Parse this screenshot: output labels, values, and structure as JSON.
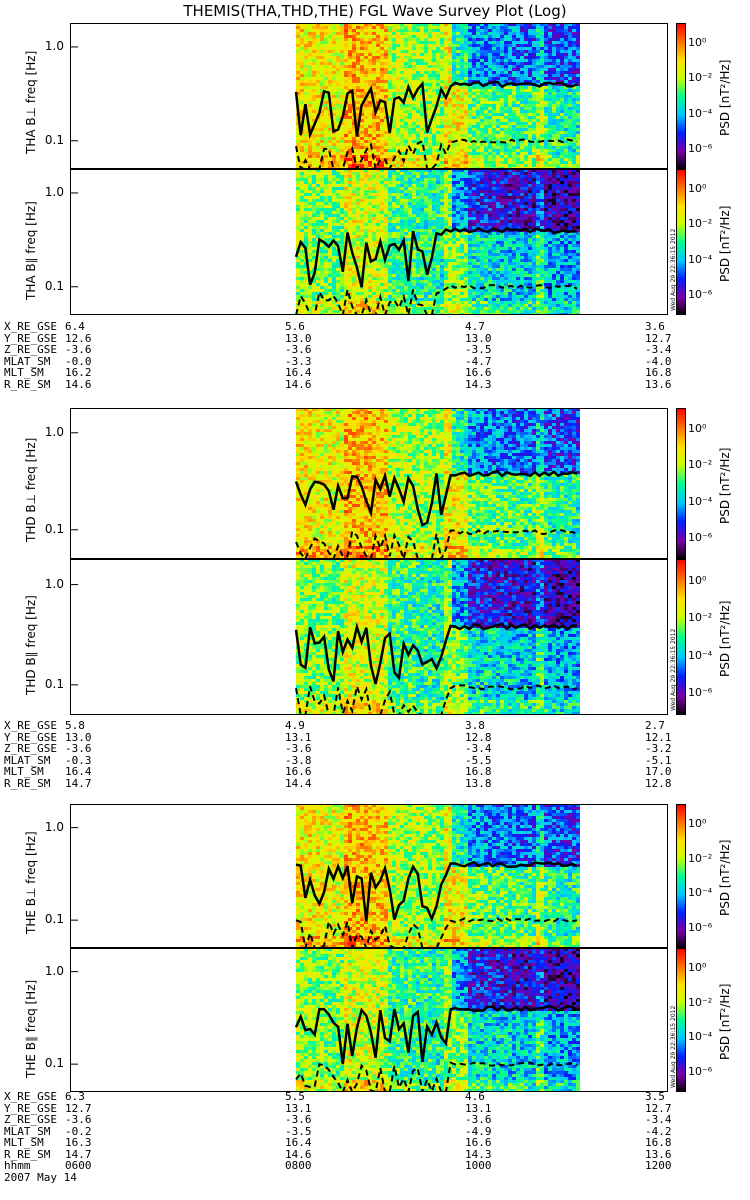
{
  "title": "THEMIS(THA,THD,THE) FGL Wave Survey Plot (Log)",
  "colors": {
    "trace": "#000000",
    "frame": "#000000",
    "background": "#ffffff"
  },
  "chart_data": {
    "type": "heatmap",
    "date": "2007 May 14",
    "x_ticks": [
      "0600",
      "0800",
      "1000",
      "1200"
    ],
    "x_tick_label": "hhmm",
    "y_axis": {
      "scale": "log",
      "range_hz": [
        0.05,
        1.8
      ],
      "ticks": [
        "1.0",
        "0.1"
      ],
      "label": "freq [Hz]"
    },
    "colorbar": {
      "label": "PSD [nT²/Hz]",
      "scale": "log",
      "range": [
        1e-07,
        30
      ],
      "ticks": [
        "10⁰",
        "10⁻²",
        "10⁻⁴",
        "10⁻⁶"
      ],
      "colormap": [
        "#000000",
        "#7a00a8",
        "#0020ff",
        "#00c8ff",
        "#00ff90",
        "#c8ff00",
        "#ffe000",
        "#ff7000",
        "#ff0000"
      ]
    },
    "stamp": "Wed Aug 29 22:36:15 2012",
    "data_coverage_hhmm": [
      "0840",
      "1130"
    ],
    "panels": [
      {
        "probe": "THA",
        "component": "perp",
        "label": "THA B⊥",
        "stamp": "",
        "lines": {
          "solid_hz_approx": 0.4,
          "dashed_hz_approx": 0.1
        }
      },
      {
        "probe": "THA",
        "component": "par",
        "label": "THA B∥",
        "stamp": "Wed Aug 29 22:36:15 2012",
        "lines": {
          "solid_hz_approx": 0.4,
          "dashed_hz_approx": 0.1
        }
      },
      {
        "probe": "THD",
        "component": "perp",
        "label": "THD B⊥",
        "stamp": "",
        "lines": {
          "solid_hz_approx": 0.38,
          "dashed_hz_approx": 0.095
        }
      },
      {
        "probe": "THD",
        "component": "par",
        "label": "THD B∥",
        "stamp": "Wed Aug 29 22:36:15 2012",
        "lines": {
          "solid_hz_approx": 0.38,
          "dashed_hz_approx": 0.095
        }
      },
      {
        "probe": "THE",
        "component": "perp",
        "label": "THE B⊥",
        "stamp": "",
        "lines": {
          "solid_hz_approx": 0.4,
          "dashed_hz_approx": 0.1
        }
      },
      {
        "probe": "THE",
        "component": "par",
        "label": "THE B∥",
        "stamp": "Wed Aug 29 22:36:15 2012",
        "lines": {
          "solid_hz_approx": 0.4,
          "dashed_hz_approx": 0.1
        }
      }
    ],
    "ephemeris": [
      {
        "probe": "THA",
        "rows": [
          {
            "name": "X_RE_GSE",
            "values": [
              "6.4",
              "5.6",
              "4.7",
              "3.6"
            ]
          },
          {
            "name": "Y_RE_GSE",
            "values": [
              "12.6",
              "13.0",
              "13.0",
              "12.7"
            ]
          },
          {
            "name": "Z_RE_GSE",
            "values": [
              "-3.6",
              "-3.6",
              "-3.5",
              "-3.4"
            ]
          },
          {
            "name": "MLAT_SM",
            "values": [
              "-0.0",
              "-3.3",
              "-4.7",
              "-4.0"
            ]
          },
          {
            "name": "MLT_SM",
            "values": [
              "16.2",
              "16.4",
              "16.6",
              "16.8"
            ]
          },
          {
            "name": "R_RE_SM",
            "values": [
              "14.6",
              "14.6",
              "14.3",
              "13.6"
            ]
          }
        ]
      },
      {
        "probe": "THD",
        "rows": [
          {
            "name": "X_RE_GSE",
            "values": [
              "5.8",
              "4.9",
              "3.8",
              "2.7"
            ]
          },
          {
            "name": "Y_RE_GSE",
            "values": [
              "13.0",
              "13.1",
              "12.8",
              "12.1"
            ]
          },
          {
            "name": "Z_RE_GSE",
            "values": [
              "-3.6",
              "-3.6",
              "-3.4",
              "-3.2"
            ]
          },
          {
            "name": "MLAT_SM",
            "values": [
              "-0.3",
              "-3.8",
              "-5.5",
              "-5.1"
            ]
          },
          {
            "name": "MLT_SM",
            "values": [
              "16.4",
              "16.6",
              "16.8",
              "17.0"
            ]
          },
          {
            "name": "R_RE_SM",
            "values": [
              "14.7",
              "14.4",
              "13.8",
              "12.8"
            ]
          }
        ]
      },
      {
        "probe": "THE",
        "rows": [
          {
            "name": "X_RE_GSE",
            "values": [
              "6.3",
              "5.5",
              "4.6",
              "3.5"
            ]
          },
          {
            "name": "Y_RE_GSE",
            "values": [
              "12.7",
              "13.1",
              "13.1",
              "12.7"
            ]
          },
          {
            "name": "Z_RE_GSE",
            "values": [
              "-3.6",
              "-3.6",
              "-3.6",
              "-3.4"
            ]
          },
          {
            "name": "MLAT_SM",
            "values": [
              "-0.2",
              "-3.5",
              "-4.9",
              "-4.2"
            ]
          },
          {
            "name": "MLT_SM",
            "values": [
              "16.3",
              "16.4",
              "16.6",
              "16.8"
            ]
          },
          {
            "name": "R_RE_SM",
            "values": [
              "14.7",
              "14.6",
              "14.3",
              "13.6"
            ]
          }
        ]
      }
    ]
  }
}
